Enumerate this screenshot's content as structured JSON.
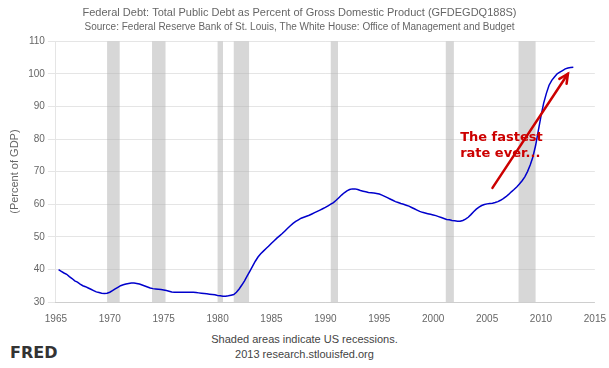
{
  "chart_data": {
    "type": "line",
    "title": "Federal Debt: Total Public Debt as Percent of Gross Domestic Product (GFDEGDQ188S)",
    "subtitle": "Source: Federal Reserve Bank of St. Louis, The White House: Office of Management and Budget",
    "ylabel": "(Percent of GDP)",
    "footer": [
      "Shaded areas indicate US recessions.",
      "2013 research.stlouisfed.org"
    ],
    "logo": "FRED",
    "xlim": [
      1965,
      2015
    ],
    "ylim": [
      30,
      110
    ],
    "xticks": [
      1965,
      1970,
      1975,
      1980,
      1985,
      1990,
      1995,
      2000,
      2005,
      2010,
      2015
    ],
    "yticks": [
      30,
      40,
      50,
      60,
      70,
      80,
      90,
      100,
      110
    ],
    "grid": true,
    "color": "#0000cc",
    "recession_color": "#b0b0b0",
    "recessions": [
      [
        1969.75,
        1970.92
      ],
      [
        1973.92,
        1975.17
      ],
      [
        1980.0,
        1980.5
      ],
      [
        1981.5,
        1982.92
      ],
      [
        1990.5,
        1991.17
      ],
      [
        2001.17,
        2001.92
      ],
      [
        2007.92,
        2009.5
      ]
    ],
    "annotations": [
      {
        "text": "The fastest\nrate ever...",
        "x": 2002.5,
        "y": 78,
        "color": "#cc0000",
        "arrow_from": [
          2005.5,
          65
        ],
        "arrow_to": [
          2012.5,
          100
        ]
      }
    ],
    "x": [
      1965.25,
      1965.5,
      1965.75,
      1966.0,
      1966.25,
      1966.5,
      1966.75,
      1967.0,
      1967.25,
      1967.5,
      1967.75,
      1968.0,
      1968.25,
      1968.5,
      1968.75,
      1969.0,
      1969.25,
      1969.5,
      1969.75,
      1970.0,
      1970.25,
      1970.5,
      1970.75,
      1971.0,
      1971.25,
      1971.5,
      1971.75,
      1972.0,
      1972.25,
      1972.5,
      1972.75,
      1973.0,
      1973.25,
      1973.5,
      1973.75,
      1974.0,
      1974.25,
      1974.5,
      1974.75,
      1975.0,
      1975.25,
      1975.5,
      1975.75,
      1976.0,
      1976.25,
      1976.5,
      1976.75,
      1977.0,
      1977.25,
      1977.5,
      1977.75,
      1978.0,
      1978.25,
      1978.5,
      1978.75,
      1979.0,
      1979.25,
      1979.5,
      1979.75,
      1980.0,
      1980.25,
      1980.5,
      1980.75,
      1981.0,
      1981.25,
      1981.5,
      1981.75,
      1982.0,
      1982.25,
      1982.5,
      1982.75,
      1983.0,
      1983.25,
      1983.5,
      1983.75,
      1984.0,
      1984.25,
      1984.5,
      1984.75,
      1985.0,
      1985.25,
      1985.5,
      1985.75,
      1986.0,
      1986.25,
      1986.5,
      1986.75,
      1987.0,
      1987.25,
      1987.5,
      1987.75,
      1988.0,
      1988.25,
      1988.5,
      1988.75,
      1989.0,
      1989.25,
      1989.5,
      1989.75,
      1990.0,
      1990.25,
      1990.5,
      1990.75,
      1991.0,
      1991.25,
      1991.5,
      1991.75,
      1992.0,
      1992.25,
      1992.5,
      1992.75,
      1993.0,
      1993.25,
      1993.5,
      1993.75,
      1994.0,
      1994.25,
      1994.5,
      1994.75,
      1995.0,
      1995.25,
      1995.5,
      1995.75,
      1996.0,
      1996.25,
      1996.5,
      1996.75,
      1997.0,
      1997.25,
      1997.5,
      1997.75,
      1998.0,
      1998.25,
      1998.5,
      1998.75,
      1999.0,
      1999.25,
      1999.5,
      1999.75,
      2000.0,
      2000.25,
      2000.5,
      2000.75,
      2001.0,
      2001.25,
      2001.5,
      2001.75,
      2002.0,
      2002.25,
      2002.5,
      2002.75,
      2003.0,
      2003.25,
      2003.5,
      2003.75,
      2004.0,
      2004.25,
      2004.5,
      2004.75,
      2005.0,
      2005.25,
      2005.5,
      2005.75,
      2006.0,
      2006.25,
      2006.5,
      2006.75,
      2007.0,
      2007.25,
      2007.5,
      2007.75,
      2008.0,
      2008.25,
      2008.5,
      2008.75,
      2009.0,
      2009.25,
      2009.5,
      2009.75,
      2010.0,
      2010.25,
      2010.5,
      2010.75,
      2011.0,
      2011.25,
      2011.5,
      2011.75,
      2012.0,
      2012.25,
      2012.5,
      2012.75,
      2013.0
    ],
    "values": [
      39.9,
      39.4,
      38.9,
      38.5,
      37.8,
      37.2,
      36.5,
      36.1,
      35.5,
      35.0,
      34.7,
      34.3,
      33.9,
      33.5,
      33.1,
      32.9,
      32.7,
      32.6,
      32.7,
      33.0,
      33.5,
      34.0,
      34.5,
      35.0,
      35.3,
      35.5,
      35.7,
      35.8,
      35.8,
      35.7,
      35.5,
      35.2,
      34.9,
      34.6,
      34.3,
      34.1,
      34.0,
      33.9,
      33.8,
      33.7,
      33.5,
      33.3,
      33.1,
      33.0,
      33.0,
      33.0,
      33.0,
      33.0,
      33.0,
      33.0,
      33.0,
      32.9,
      32.8,
      32.7,
      32.6,
      32.5,
      32.4,
      32.3,
      32.2,
      32.0,
      31.9,
      31.8,
      31.8,
      31.9,
      32.1,
      32.3,
      33.0,
      34.0,
      35.2,
      36.5,
      38.0,
      39.5,
      41.0,
      42.5,
      43.8,
      44.8,
      45.6,
      46.4,
      47.2,
      48.0,
      48.8,
      49.6,
      50.3,
      51.0,
      51.8,
      52.6,
      53.4,
      54.1,
      54.7,
      55.2,
      55.7,
      56.0,
      56.3,
      56.6,
      57.0,
      57.4,
      57.8,
      58.2,
      58.6,
      59.0,
      59.5,
      60.0,
      60.5,
      61.2,
      62.0,
      62.8,
      63.5,
      64.1,
      64.5,
      64.7,
      64.7,
      64.5,
      64.2,
      64.0,
      63.8,
      63.6,
      63.5,
      63.4,
      63.3,
      63.1,
      62.8,
      62.4,
      62.0,
      61.6,
      61.2,
      60.8,
      60.5,
      60.2,
      60.0,
      59.7,
      59.4,
      59.0,
      58.6,
      58.2,
      57.8,
      57.5,
      57.3,
      57.1,
      56.9,
      56.7,
      56.5,
      56.2,
      55.9,
      55.6,
      55.3,
      55.2,
      55.0,
      54.9,
      54.8,
      54.8,
      55.0,
      55.4,
      56.0,
      56.8,
      57.7,
      58.5,
      59.1,
      59.6,
      59.9,
      60.1,
      60.2,
      60.3,
      60.5,
      60.8,
      61.2,
      61.7,
      62.3,
      63.0,
      63.8,
      64.5,
      65.3,
      66.2,
      67.2,
      68.4,
      70.0,
      72.0,
      74.5,
      78.0,
      82.5,
      87.0,
      91.0,
      94.0,
      96.5,
      98.0,
      99.0,
      100.0,
      100.5,
      101.0,
      101.5,
      101.8,
      101.9,
      102.0
    ]
  }
}
